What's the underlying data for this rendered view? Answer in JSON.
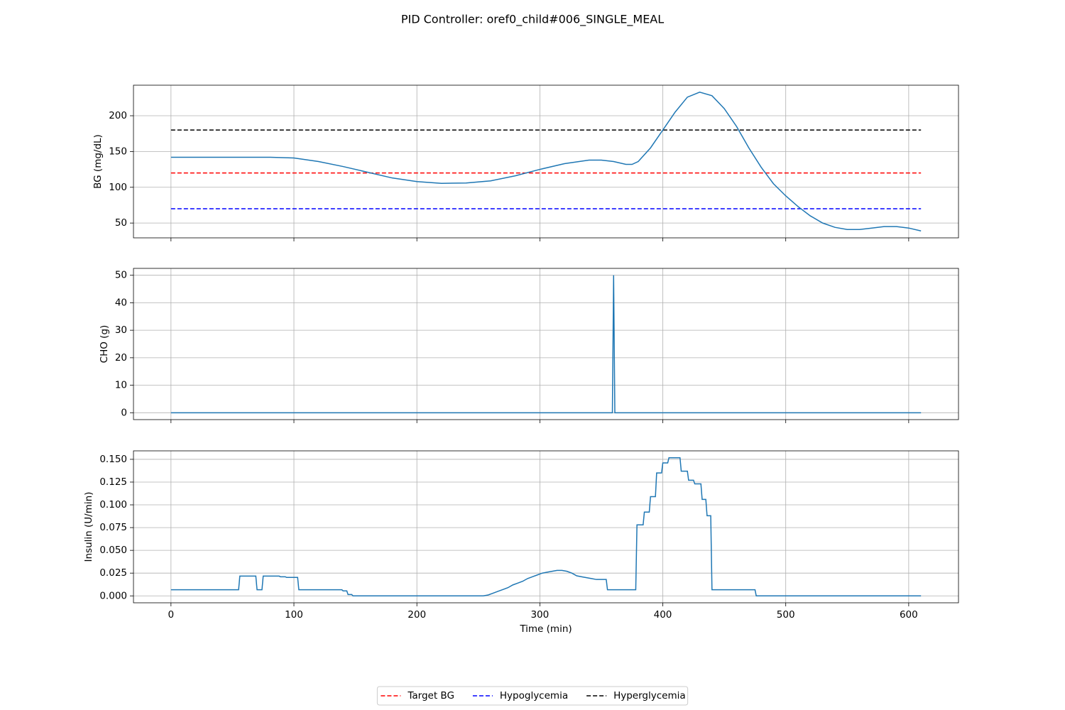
{
  "title": "PID Controller: oref0_child#006_SINGLE_MEAL",
  "chart_data": [
    {
      "type": "line",
      "ylabel": "BG (mg/dL)",
      "color": "#1f77b4",
      "grid": true,
      "legend": "lower center",
      "x": [
        0,
        50,
        80,
        100,
        120,
        140,
        160,
        180,
        200,
        220,
        240,
        260,
        280,
        300,
        320,
        340,
        350,
        360,
        370,
        375,
        380,
        390,
        400,
        410,
        420,
        430,
        440,
        450,
        460,
        470,
        480,
        490,
        500,
        510,
        520,
        530,
        540,
        550,
        560,
        570,
        580,
        590,
        600,
        610
      ],
      "values": [
        142,
        142,
        142,
        141,
        136,
        129,
        121,
        113,
        108,
        105.5,
        106,
        109,
        116,
        125,
        133,
        138,
        138,
        136,
        132,
        132,
        136,
        155,
        180,
        205,
        226,
        233,
        228,
        210,
        185,
        155,
        128,
        105,
        88,
        73,
        60,
        50,
        44,
        41,
        41,
        43,
        45,
        45,
        43,
        39
      ],
      "series": [
        {
          "name": "Target BG",
          "color": "#ff0000",
          "x": [
            0,
            610
          ],
          "values": [
            120,
            120
          ]
        },
        {
          "name": "Hypoglycemia",
          "color": "#0000ff",
          "x": [
            0,
            610
          ],
          "values": [
            70,
            70
          ]
        },
        {
          "name": "Hyperglycemia",
          "color": "#000000",
          "x": [
            0,
            610
          ],
          "values": [
            180,
            180
          ]
        }
      ],
      "xlim": [
        -30.5,
        640.5
      ],
      "xticks": [
        0,
        100,
        200,
        300,
        400,
        500,
        600
      ],
      "ylim": [
        29.3,
        242.7
      ],
      "yticks": [
        50,
        100,
        150,
        200
      ]
    },
    {
      "type": "line",
      "ylabel": "CHO (g)",
      "color": "#1f77b4",
      "grid": true,
      "x": [
        0,
        359,
        360,
        361,
        610
      ],
      "values": [
        0,
        0,
        50,
        0,
        0
      ],
      "xlim": [
        -30.5,
        640.5
      ],
      "xticks": [
        0,
        100,
        200,
        300,
        400,
        500,
        600
      ],
      "ylim": [
        -2.5,
        52.5
      ],
      "yticks": [
        0,
        10,
        20,
        30,
        40,
        50
      ]
    },
    {
      "type": "line",
      "ylabel": "Insulin (U/min)",
      "xlabel": "Time (min)",
      "color": "#1f77b4",
      "grid": true,
      "x": [
        0,
        55,
        56,
        69,
        70,
        74,
        75,
        88,
        89,
        93,
        94,
        103,
        104,
        139,
        140,
        143,
        144,
        147,
        148,
        254,
        258,
        262,
        266,
        270,
        274,
        278,
        282,
        286,
        290,
        294,
        298,
        302,
        306,
        310,
        314,
        318,
        322,
        326,
        330,
        334,
        338,
        342,
        346,
        354,
        355,
        378,
        379,
        384,
        385,
        389,
        390,
        394,
        395,
        399,
        400,
        404,
        405,
        414,
        415,
        420,
        421,
        425,
        426,
        431,
        432,
        435,
        436,
        439,
        440,
        475,
        476,
        610
      ],
      "values": [
        0.0067,
        0.0067,
        0.0217,
        0.0217,
        0.0067,
        0.0067,
        0.0217,
        0.0217,
        0.021,
        0.021,
        0.0203,
        0.0203,
        0.0067,
        0.0067,
        0.0055,
        0.0055,
        0.0015,
        0.0015,
        0,
        0,
        0.001,
        0.003,
        0.005,
        0.007,
        0.009,
        0.012,
        0.014,
        0.016,
        0.019,
        0.021,
        0.023,
        0.025,
        0.026,
        0.027,
        0.028,
        0.028,
        0.027,
        0.025,
        0.022,
        0.021,
        0.02,
        0.019,
        0.018,
        0.018,
        0.0067,
        0.0067,
        0.078,
        0.078,
        0.092,
        0.092,
        0.109,
        0.109,
        0.135,
        0.135,
        0.146,
        0.146,
        0.1517,
        0.1517,
        0.137,
        0.137,
        0.127,
        0.127,
        0.123,
        0.123,
        0.106,
        0.106,
        0.088,
        0.088,
        0.0067,
        0.0067,
        0,
        0
      ],
      "xlim": [
        -30.5,
        640.5
      ],
      "xticks": [
        0,
        100,
        200,
        300,
        400,
        500,
        600
      ],
      "ylim": [
        -0.0076,
        0.1593
      ],
      "yticks": [
        {
          "value": 0,
          "label": "0.000"
        },
        {
          "value": 0.025,
          "label": "0.025"
        },
        {
          "value": 0.05,
          "label": "0.050"
        },
        {
          "value": 0.075,
          "label": "0.075"
        },
        {
          "value": 0.1,
          "label": "0.100"
        },
        {
          "value": 0.125,
          "label": "0.125"
        },
        {
          "value": 0.15,
          "label": "0.150"
        }
      ]
    }
  ]
}
